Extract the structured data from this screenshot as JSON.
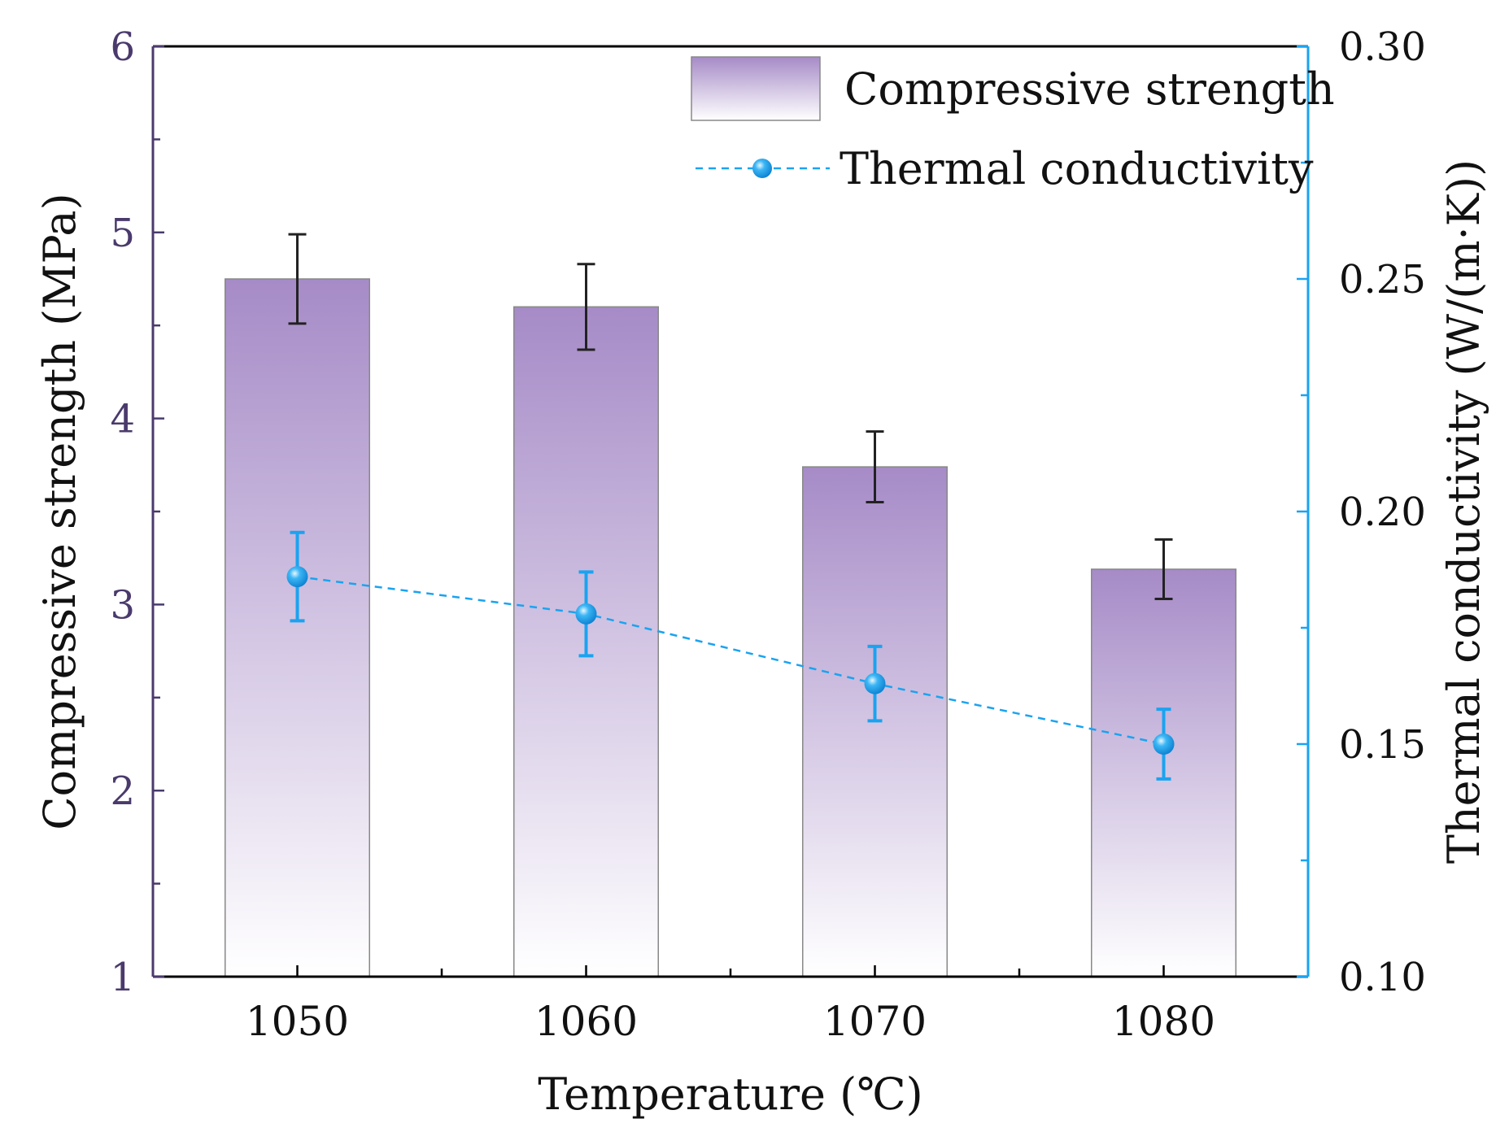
{
  "chart_data": {
    "type": "bar+line",
    "xlabel": "Temperature (℃)",
    "ylabel_left": "Compressive strength (MPa)",
    "ylabel_right": "Thermal conductivity (W/(m·K))",
    "categories": [
      "1050",
      "1060",
      "1070",
      "1080"
    ],
    "x": [
      1050,
      1060,
      1070,
      1080
    ],
    "xlim": [
      1045,
      1085
    ],
    "ylim_left": [
      1,
      6
    ],
    "ylim_right": [
      0.1,
      0.3
    ],
    "yticks_left": [
      "1",
      "2",
      "3",
      "4",
      "5",
      "6"
    ],
    "yticks_right": [
      "0.10",
      "0.15",
      "0.20",
      "0.25",
      "0.30"
    ],
    "legend_position": "top-right",
    "series": [
      {
        "name": "Compressive strength",
        "type": "bar",
        "axis": "left",
        "values": [
          4.75,
          4.6,
          3.74,
          3.19
        ],
        "errors": [
          0.24,
          0.23,
          0.19,
          0.16
        ]
      },
      {
        "name": "Thermal conductivity",
        "type": "line",
        "axis": "right",
        "style": "dashed",
        "values": [
          0.186,
          0.178,
          0.163,
          0.15
        ],
        "errors": [
          0.0095,
          0.009,
          0.008,
          0.0075
        ]
      }
    ],
    "colors": {
      "bar_top": "#a68bc7",
      "bar_bottom": "#ffffff",
      "line": "#1aa3f0",
      "left_axis": "#4a3a6c",
      "right_axis": "#1aa3f0",
      "error_bar": "#222222"
    }
  }
}
